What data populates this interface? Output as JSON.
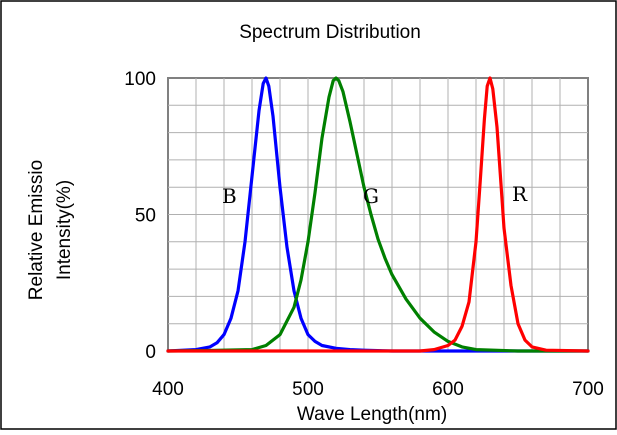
{
  "chart_data": {
    "type": "line",
    "title": "Spectrum Distribution",
    "xlabel": "Wave Length(nm)",
    "ylabel_lines": [
      "Relative Emissio",
      "Intensity(%)"
    ],
    "xlim": [
      400,
      700
    ],
    "ylim": [
      0,
      100
    ],
    "xticks": [
      "400",
      "500",
      "600",
      "700"
    ],
    "yticks": [
      "0",
      "50",
      "100"
    ],
    "grid": true,
    "series": [
      {
        "name": "B",
        "color": "#0000ff",
        "x": [
          400,
          420,
          430,
          435,
          440,
          445,
          450,
          455,
          460,
          465,
          468,
          470,
          472,
          475,
          480,
          485,
          490,
          495,
          500,
          505,
          510,
          520,
          530,
          540,
          560,
          600,
          650,
          700
        ],
        "y": [
          0,
          0.5,
          1.5,
          3,
          6,
          12,
          22,
          40,
          64,
          88,
          98,
          100,
          97,
          86,
          60,
          38,
          22,
          12,
          6,
          3.5,
          2,
          1,
          0.5,
          0.3,
          0,
          0,
          0,
          0
        ]
      },
      {
        "name": "G",
        "color": "#008000",
        "x": [
          400,
          430,
          460,
          470,
          480,
          490,
          495,
          500,
          505,
          510,
          515,
          518,
          520,
          522,
          525,
          530,
          535,
          540,
          545,
          550,
          555,
          560,
          570,
          580,
          590,
          600,
          610,
          620,
          650,
          700
        ],
        "y": [
          0,
          0.2,
          0.5,
          2,
          6,
          16,
          26,
          40,
          58,
          78,
          93,
          99,
          100,
          99,
          95,
          84,
          72,
          60,
          50,
          41,
          34,
          28,
          19,
          12,
          7,
          3.5,
          1.5,
          0.5,
          0,
          0
        ]
      },
      {
        "name": "R",
        "color": "#ff0000",
        "x": [
          400,
          580,
          590,
          600,
          605,
          610,
          615,
          620,
          623,
          626,
          628,
          630,
          632,
          635,
          638,
          640,
          645,
          650,
          655,
          660,
          670,
          700
        ],
        "y": [
          0,
          0,
          0.5,
          2,
          4,
          9,
          18,
          40,
          62,
          85,
          97,
          100,
          96,
          82,
          60,
          45,
          24,
          10,
          4,
          1.5,
          0.3,
          0
        ]
      }
    ]
  }
}
